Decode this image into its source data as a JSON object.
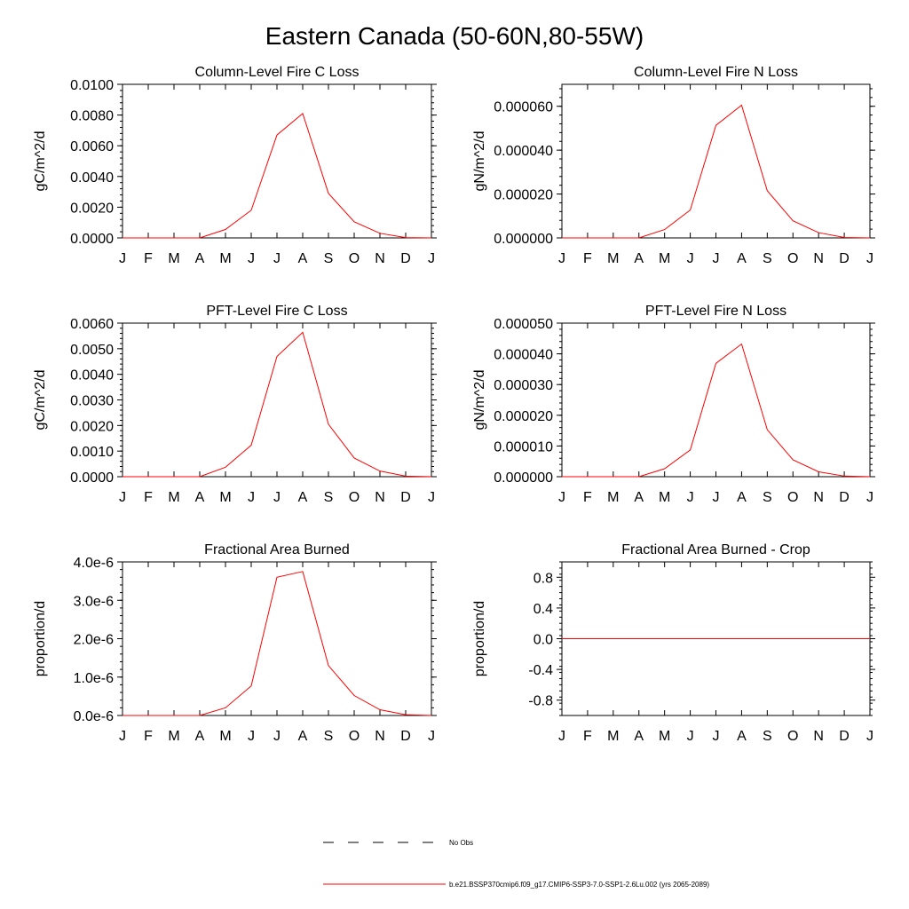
{
  "figure": {
    "title": "Eastern Canada (50-60N,80-55W)"
  },
  "legend": {
    "entries": [
      {
        "label": "No Obs",
        "color": "#000000",
        "style": "dashed"
      },
      {
        "label": "b.e21.BSSP370cmip6.f09_g17.CMIP6-SSP3-7.0-SSP1-2.6Lu.002 (yrs 2065-2089)",
        "color": "#ff0000",
        "style": "solid"
      }
    ]
  },
  "chart_data": [
    {
      "type": "line",
      "title": "Column-Level Fire C Loss",
      "ylabel": "gC/m^2/d",
      "xlabel": "",
      "x": [
        "J",
        "F",
        "M",
        "A",
        "M",
        "J",
        "J",
        "A",
        "S",
        "O",
        "N",
        "D",
        "J"
      ],
      "ylim": [
        0,
        0.01
      ],
      "yticks": [
        0,
        0.002,
        0.004,
        0.006,
        0.008,
        0.01
      ],
      "yticklabels": [
        "0.0000",
        "0.0020",
        "0.0040",
        "0.0060",
        "0.0080",
        "0.0100"
      ],
      "series": [
        {
          "name": "b.e21.BSSP370cmip6.f09_g17.CMIP6-SSP3-7.0-SSP1-2.6Lu.002 (yrs 2065-2089)",
          "color": "#ff0000",
          "values": [
            0,
            0,
            0,
            0,
            0.00055,
            0.0018,
            0.0067,
            0.0081,
            0.0029,
            0.00105,
            0.0003,
            2e-05,
            0
          ]
        }
      ]
    },
    {
      "type": "line",
      "title": "Column-Level Fire N Loss",
      "ylabel": "gN/m^2/d",
      "xlabel": "",
      "x": [
        "J",
        "F",
        "M",
        "A",
        "M",
        "J",
        "J",
        "A",
        "S",
        "O",
        "N",
        "D",
        "J"
      ],
      "ylim": [
        0,
        7e-05
      ],
      "yticks": [
        0,
        2e-05,
        4e-05,
        6e-05
      ],
      "yticklabels": [
        "0.000000",
        "0.000020",
        "0.000040",
        "0.000060"
      ],
      "series": [
        {
          "name": "b.e21.BSSP370cmip6.f09_g17.CMIP6-SSP3-7.0-SSP1-2.6Lu.002 (yrs 2065-2089)",
          "color": "#ff0000",
          "values": [
            0,
            0,
            0,
            0,
            3.8e-06,
            1.27e-05,
            5.13e-05,
            6.05e-05,
            2.15e-05,
            7.8e-06,
            2.4e-06,
            2e-07,
            0
          ]
        }
      ]
    },
    {
      "type": "line",
      "title": "PFT-Level Fire C Loss",
      "ylabel": "gC/m^2/d",
      "xlabel": "",
      "x": [
        "J",
        "F",
        "M",
        "A",
        "M",
        "J",
        "J",
        "A",
        "S",
        "O",
        "N",
        "D",
        "J"
      ],
      "ylim": [
        0,
        0.006
      ],
      "yticks": [
        0,
        0.001,
        0.002,
        0.003,
        0.004,
        0.005,
        0.006
      ],
      "yticklabels": [
        "0.0000",
        "0.0010",
        "0.0020",
        "0.0030",
        "0.0040",
        "0.0050",
        "0.0060"
      ],
      "series": [
        {
          "name": "b.e21.BSSP370cmip6.f09_g17.CMIP6-SSP3-7.0-SSP1-2.6Lu.002 (yrs 2065-2089)",
          "color": "#ff0000",
          "values": [
            0,
            0,
            0,
            0,
            0.00037,
            0.00123,
            0.0047,
            0.00564,
            0.00205,
            0.00073,
            0.00022,
            2e-05,
            0
          ]
        }
      ]
    },
    {
      "type": "line",
      "title": "PFT-Level Fire N Loss",
      "ylabel": "gN/m^2/d",
      "xlabel": "",
      "x": [
        "J",
        "F",
        "M",
        "A",
        "M",
        "J",
        "J",
        "A",
        "S",
        "O",
        "N",
        "D",
        "J"
      ],
      "ylim": [
        0,
        5e-05
      ],
      "yticks": [
        0,
        1e-05,
        2e-05,
        3e-05,
        4e-05,
        5e-05
      ],
      "yticklabels": [
        "0.000000",
        "0.000010",
        "0.000020",
        "0.000030",
        "0.000040",
        "0.000050"
      ],
      "series": [
        {
          "name": "b.e21.BSSP370cmip6.f09_g17.CMIP6-SSP3-7.0-SSP1-2.6Lu.002 (yrs 2065-2089)",
          "color": "#ff0000",
          "values": [
            0,
            0,
            0,
            0,
            2.6e-06,
            8.7e-06,
            3.69e-05,
            4.32e-05,
            1.53e-05,
            5.5e-06,
            1.6e-06,
            2e-07,
            0
          ]
        }
      ]
    },
    {
      "type": "line",
      "title": "Fractional Area Burned",
      "ylabel": "proportion/d",
      "xlabel": "",
      "x": [
        "J",
        "F",
        "M",
        "A",
        "M",
        "J",
        "J",
        "A",
        "S",
        "O",
        "N",
        "D",
        "J"
      ],
      "ylim": [
        0,
        4e-06
      ],
      "yticks": [
        0,
        1e-06,
        2e-06,
        3e-06,
        4e-06
      ],
      "yticklabels": [
        "0.0e-6",
        "1.0e-6",
        "2.0e-6",
        "3.0e-6",
        "4.0e-6"
      ],
      "series": [
        {
          "name": "b.e21.BSSP370cmip6.f09_g17.CMIP6-SSP3-7.0-SSP1-2.6Lu.002 (yrs 2065-2089)",
          "color": "#ff0000",
          "values": [
            0,
            0,
            0,
            0,
            2e-07,
            7.7e-07,
            3.6e-06,
            3.75e-06,
            1.3e-06,
            5.2e-07,
            1.5e-07,
            2e-08,
            0
          ]
        }
      ]
    },
    {
      "type": "line",
      "title": "Fractional Area Burned - Crop",
      "ylabel": "proportion/d",
      "xlabel": "",
      "x": [
        "J",
        "F",
        "M",
        "A",
        "M",
        "J",
        "J",
        "A",
        "S",
        "O",
        "N",
        "D",
        "J"
      ],
      "ylim": [
        -1,
        1
      ],
      "yticks": [
        -0.8,
        -0.4,
        0,
        0.4,
        0.8
      ],
      "yticklabels": [
        "-0.8",
        "-0.4",
        "0.0",
        "0.4",
        "0.8"
      ],
      "series": [
        {
          "name": "b.e21.BSSP370cmip6.f09_g17.CMIP6-SSP3-7.0-SSP1-2.6Lu.002 (yrs 2065-2089)",
          "color": "#ff0000",
          "values": [
            0,
            0,
            0,
            0,
            0,
            0,
            0,
            0,
            0,
            0,
            0,
            0,
            0
          ]
        }
      ]
    }
  ]
}
